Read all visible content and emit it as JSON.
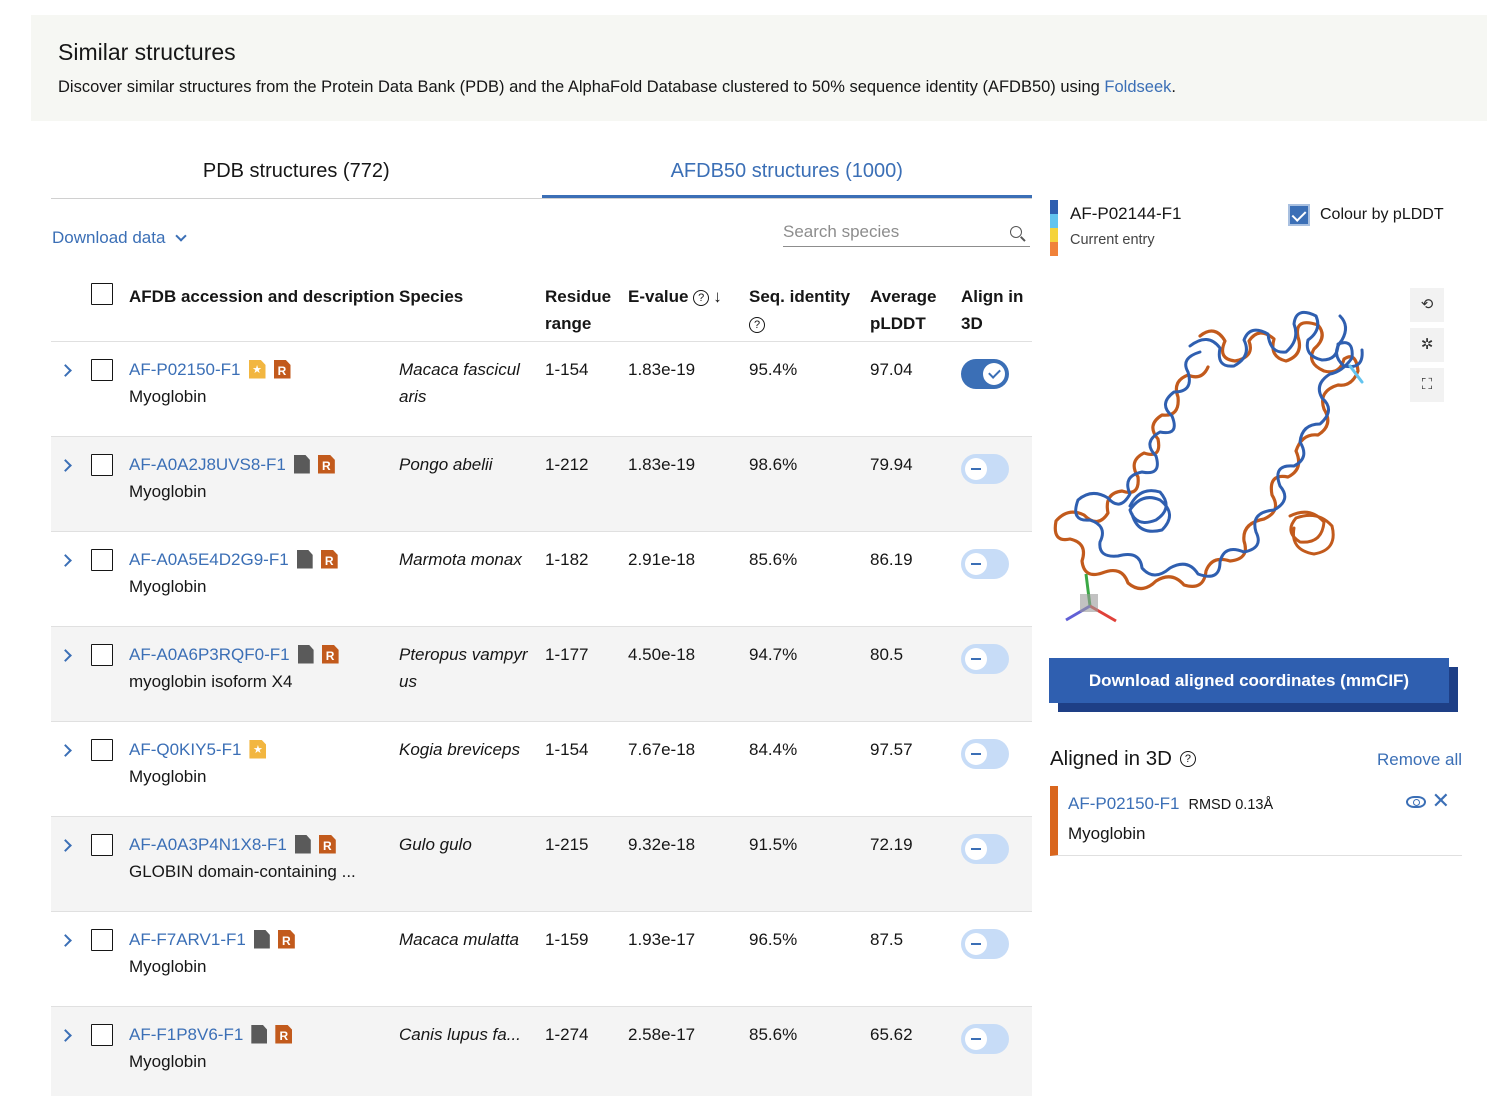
{
  "banner": {
    "title": "Similar structures",
    "desc_prefix": "Discover similar structures from the Protein Data Bank (PDB) and the AlphaFold Database clustered to 50% sequence identity (AFDB50) using ",
    "desc_link": "Foldseek",
    "desc_suffix": "."
  },
  "tabs": [
    {
      "label": "PDB structures (772)",
      "active": false
    },
    {
      "label": "AFDB50 structures (1000)",
      "active": true
    }
  ],
  "toolbar": {
    "download_data": "Download data",
    "search_placeholder": "Search species"
  },
  "table": {
    "headers": {
      "accession": "AFDB accession and description",
      "species": "Species",
      "residue": "Residue range",
      "evalue": "E-value",
      "identity": "Seq. identity",
      "plddt": "Average pLDDT",
      "align": "Align in 3D"
    },
    "rows": [
      {
        "accession": "AF-P02150-F1",
        "description": "Myoglobin",
        "species": "Macaca fascicul aris",
        "residue": "1-154",
        "evalue": "1.83e-19",
        "identity": "95.4%",
        "plddt": "97.04",
        "icon": "star",
        "aligned": true
      },
      {
        "accession": "AF-A0A2J8UVS8-F1",
        "description": "Myoglobin",
        "species": "Pongo abelii",
        "residue": "1-212",
        "evalue": "1.83e-19",
        "identity": "98.6%",
        "plddt": "79.94",
        "icon": "file",
        "aligned": false
      },
      {
        "accession": "AF-A0A5E4D2G9-F1",
        "description": "Myoglobin",
        "species": "Marmota monax",
        "residue": "1-182",
        "evalue": "2.91e-18",
        "identity": "85.6%",
        "plddt": "86.19",
        "icon": "file",
        "aligned": false
      },
      {
        "accession": "AF-A0A6P3RQF0-F1",
        "description": "myoglobin isoform X4",
        "species": "Pteropus vampyr us",
        "residue": "1-177",
        "evalue": "4.50e-18",
        "identity": "94.7%",
        "plddt": "80.5",
        "icon": "file",
        "aligned": false
      },
      {
        "accession": "AF-Q0KIY5-F1",
        "description": "Myoglobin",
        "species": "Kogia breviceps",
        "residue": "1-154",
        "evalue": "7.67e-18",
        "identity": "84.4%",
        "plddt": "97.57",
        "icon": "star-only",
        "aligned": false
      },
      {
        "accession": "AF-A0A3P4N1X8-F1",
        "description": "GLOBIN domain-containing ...",
        "species": "Gulo gulo",
        "residue": "1-215",
        "evalue": "9.32e-18",
        "identity": "91.5%",
        "plddt": "72.19",
        "icon": "file",
        "aligned": false
      },
      {
        "accession": "AF-F7ARV1-F1",
        "description": "Myoglobin",
        "species": "Macaca mulatta",
        "residue": "1-159",
        "evalue": "1.93e-17",
        "identity": "96.5%",
        "plddt": "87.5",
        "icon": "file",
        "aligned": false
      },
      {
        "accession": "AF-F1P8V6-F1",
        "description": "Myoglobin",
        "species": "Canis lupus fa...",
        "residue": "1-274",
        "evalue": "2.58e-17",
        "identity": "85.6%",
        "plddt": "65.62",
        "icon": "file",
        "aligned": false
      }
    ]
  },
  "current_entry": {
    "id": "AF-P02144-F1",
    "label": "Current entry",
    "colour_by": "Colour by pLDDT"
  },
  "download_aligned": "Download aligned coordinates (mmCIF)",
  "aligned": {
    "title": "Aligned in 3D",
    "remove_all": "Remove all",
    "items": [
      {
        "id": "AF-P02150-F1",
        "rmsd": "RMSD 0.13Å",
        "description": "Myoglobin"
      }
    ]
  },
  "colors": {
    "accent": "#3b6fb6",
    "aligned_structure": "#d9661e",
    "reference_structure": "#2f5fb0"
  }
}
